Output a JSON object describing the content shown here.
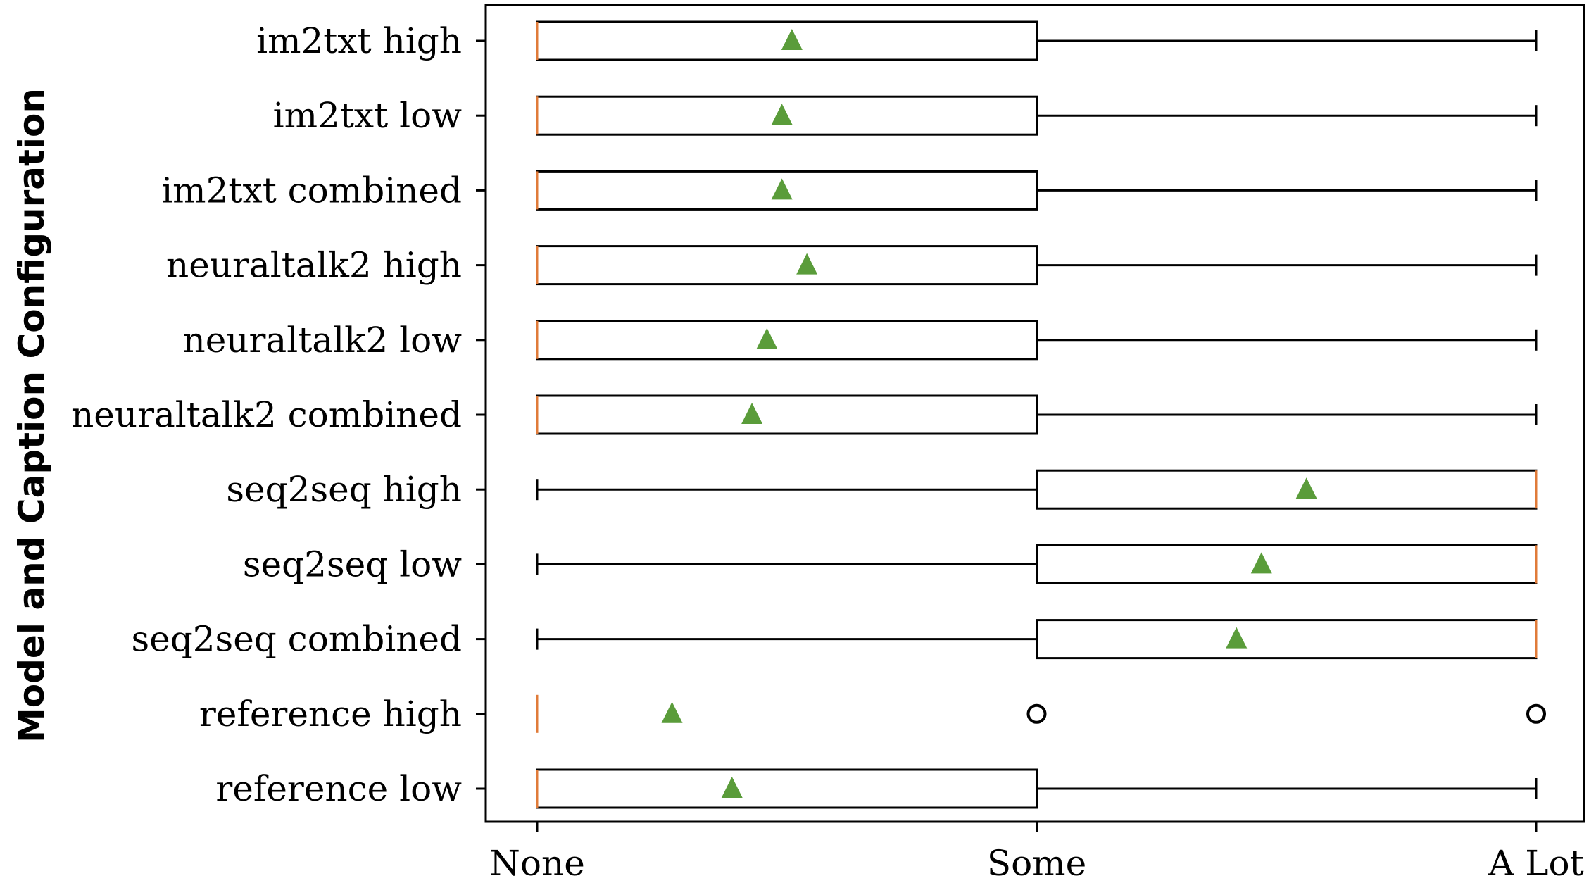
{
  "chart_data": {
    "type": "boxplot",
    "orientation": "horizontal",
    "title": "",
    "xlabel": "",
    "ylabel": "Model and Caption Configuration",
    "x_ticks": [
      {
        "value": 0,
        "label": "None"
      },
      {
        "value": 1,
        "label": "Some"
      },
      {
        "value": 2,
        "label": "A Lot"
      }
    ],
    "xlim": [
      -0.1,
      2.1
    ],
    "grid": false,
    "colors": {
      "box": "#000000",
      "median": "#e07b39",
      "mean_marker": "#5a9c3a",
      "outlier": "#000000"
    },
    "series": [
      {
        "name": "im2txt high",
        "whisker_low": 0,
        "q1": 0,
        "median": 0,
        "q3": 1,
        "whisker_high": 2,
        "mean": 0.51,
        "outliers": []
      },
      {
        "name": "im2txt low",
        "whisker_low": 0,
        "q1": 0,
        "median": 0,
        "q3": 1,
        "whisker_high": 2,
        "mean": 0.49,
        "outliers": []
      },
      {
        "name": "im2txt combined",
        "whisker_low": 0,
        "q1": 0,
        "median": 0,
        "q3": 1,
        "whisker_high": 2,
        "mean": 0.49,
        "outliers": []
      },
      {
        "name": "neuraltalk2 high",
        "whisker_low": 0,
        "q1": 0,
        "median": 0,
        "q3": 1,
        "whisker_high": 2,
        "mean": 0.54,
        "outliers": []
      },
      {
        "name": "neuraltalk2 low",
        "whisker_low": 0,
        "q1": 0,
        "median": 0,
        "q3": 1,
        "whisker_high": 2,
        "mean": 0.46,
        "outliers": []
      },
      {
        "name": "neuraltalk2 combined",
        "whisker_low": 0,
        "q1": 0,
        "median": 0,
        "q3": 1,
        "whisker_high": 2,
        "mean": 0.43,
        "outliers": []
      },
      {
        "name": "seq2seq high",
        "whisker_low": 0,
        "q1": 1,
        "median": 2,
        "q3": 2,
        "whisker_high": 2,
        "mean": 1.54,
        "outliers": []
      },
      {
        "name": "seq2seq low",
        "whisker_low": 0,
        "q1": 1,
        "median": 2,
        "q3": 2,
        "whisker_high": 2,
        "mean": 1.45,
        "outliers": []
      },
      {
        "name": "seq2seq combined",
        "whisker_low": 0,
        "q1": 1,
        "median": 2,
        "q3": 2,
        "whisker_high": 2,
        "mean": 1.4,
        "outliers": []
      },
      {
        "name": "reference high",
        "whisker_low": 0,
        "q1": 0,
        "median": 0,
        "q3": 0,
        "whisker_high": 0,
        "mean": 0.27,
        "outliers": [
          1,
          2
        ]
      },
      {
        "name": "reference low",
        "whisker_low": 0,
        "q1": 0,
        "median": 0,
        "q3": 1,
        "whisker_high": 2,
        "mean": 0.39,
        "outliers": []
      }
    ]
  }
}
